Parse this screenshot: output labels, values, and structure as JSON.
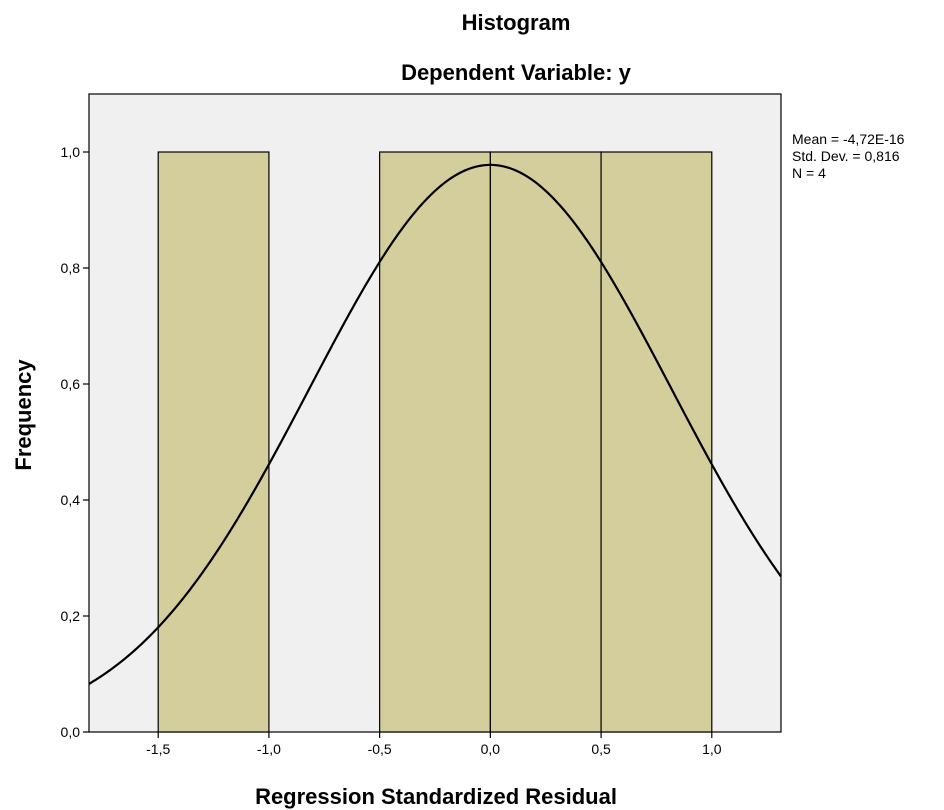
{
  "chart_data": {
    "type": "bar",
    "title": "Histogram",
    "subtitle": "Dependent Variable: y",
    "xlabel": "Regression Standardized Residual",
    "ylabel": "Frequency",
    "xlim": [
      -1.8125,
      1.3125
    ],
    "ylim": [
      0,
      1.1
    ],
    "x_ticks": [
      -1.5,
      -1.0,
      -0.5,
      0.0,
      0.5,
      1.0
    ],
    "x_tick_labels": [
      "-1,5",
      "-1,0",
      "-0,5",
      "0,0",
      "0,5",
      "1,0"
    ],
    "y_ticks": [
      0.0,
      0.2,
      0.4,
      0.6,
      0.8,
      1.0
    ],
    "y_tick_labels": [
      "0,0",
      "0,2",
      "0,4",
      "0,6",
      "0,8",
      "1,0"
    ],
    "bins": [
      {
        "from": -1.5,
        "to": -1.0,
        "count": 1
      },
      {
        "from": -0.5,
        "to": 0.0,
        "count": 1
      },
      {
        "from": 0.0,
        "to": 0.5,
        "count": 1
      },
      {
        "from": 0.5,
        "to": 1.0,
        "count": 1
      }
    ],
    "normal_curve": {
      "mean": -4.72e-16,
      "std_dev": 0.816,
      "n": 4,
      "bin_width": 0.5
    },
    "stats_lines": [
      "Mean = -4,72E-16",
      "Std. Dev. = 0,816",
      "N = 4"
    ],
    "legend": "none",
    "grid": false,
    "colors": {
      "bar_fill": "#d3ce9c",
      "plot_bg": "#f0f0f0",
      "line": "#000000"
    }
  }
}
